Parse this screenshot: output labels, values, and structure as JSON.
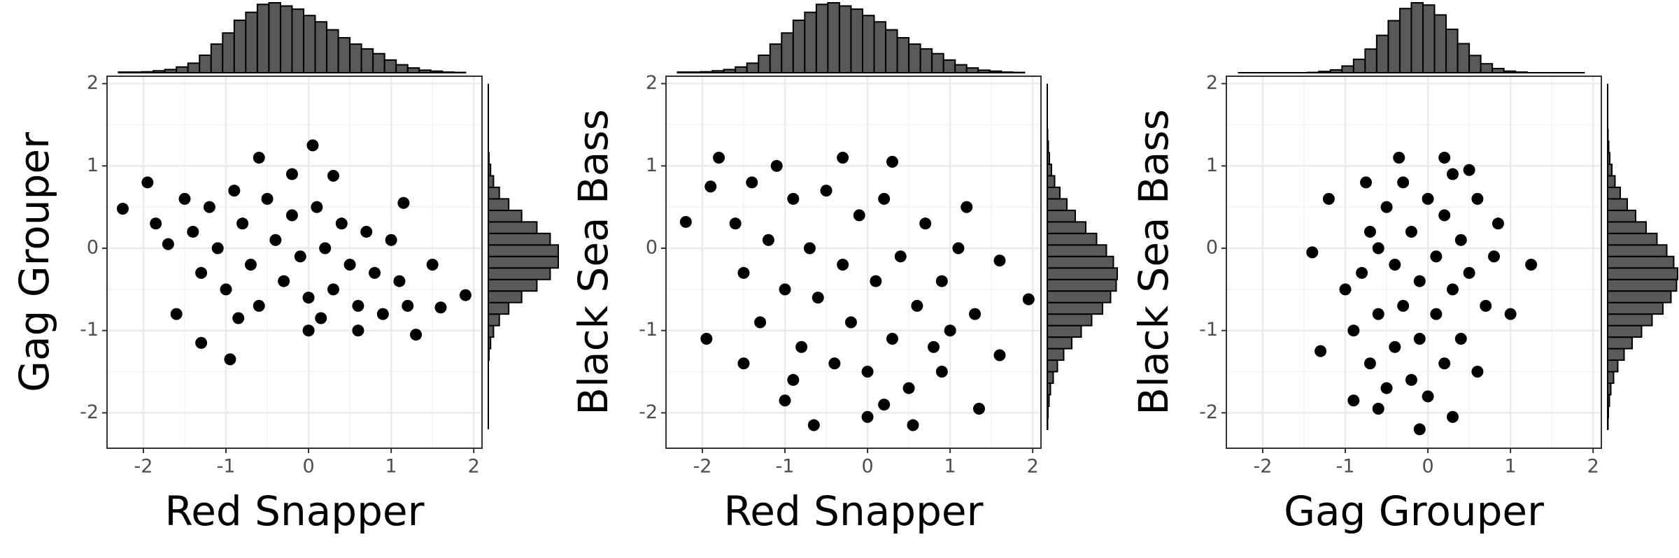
{
  "chart_data": [
    {
      "type": "scatter",
      "x_label": "Red Snapper",
      "y_label": "Gag Grouper",
      "color": "#000000",
      "grid": true,
      "xlim": [
        -2.44,
        2.1
      ],
      "ylim": [
        -2.43,
        2.09
      ],
      "xticks": [
        -2,
        -1,
        0,
        1,
        2
      ],
      "yticks": [
        -2,
        -1,
        0,
        1,
        2
      ],
      "x": [
        -2.25,
        -1.95,
        -1.85,
        0.05,
        -0.6,
        1.9,
        1.6,
        1.5,
        -0.95,
        0.0,
        0.6,
        1.15,
        -1.6,
        -1.3,
        0.3,
        -0.2,
        1.3,
        -1.7,
        -1.5,
        -1.4,
        -1.3,
        -1.2,
        -1.1,
        -1.0,
        -0.9,
        -0.8,
        -0.7,
        -0.6,
        -0.5,
        -0.4,
        -0.3,
        -0.2,
        -0.1,
        0.0,
        0.1,
        0.2,
        0.3,
        0.4,
        0.5,
        0.6,
        0.7,
        0.8,
        0.9,
        1.0,
        1.1,
        1.2,
        -0.85,
        0.15
      ],
      "y": [
        0.48,
        0.8,
        0.3,
        1.25,
        1.1,
        -0.57,
        -0.72,
        -0.2,
        -1.35,
        -1.0,
        -1.0,
        0.55,
        -0.8,
        -1.15,
        0.88,
        0.9,
        -1.05,
        0.05,
        0.6,
        0.2,
        -0.3,
        0.5,
        0.0,
        -0.5,
        0.7,
        0.3,
        -0.2,
        -0.7,
        0.6,
        0.1,
        -0.4,
        0.4,
        -0.1,
        -0.6,
        0.5,
        0.0,
        -0.5,
        0.3,
        -0.2,
        -0.7,
        0.2,
        -0.3,
        -0.8,
        0.1,
        -0.4,
        -0.7,
        -0.85,
        -0.85
      ],
      "x_hist": {
        "color": "#595959",
        "bins": [
          -2.3,
          -2.16,
          -2.02,
          -1.88,
          -1.74,
          -1.6,
          -1.46,
          -1.32,
          -1.18,
          -1.04,
          -0.9,
          -0.76,
          -0.62,
          -0.48,
          -0.34,
          -0.2,
          -0.06,
          0.08,
          0.22,
          0.36,
          0.5,
          0.64,
          0.78,
          0.92,
          1.06,
          1.2,
          1.34,
          1.48,
          1.62,
          1.76,
          1.9
        ],
        "counts": [
          2,
          2,
          3,
          6,
          10,
          18,
          30,
          55,
          90,
          125,
          165,
          190,
          215,
          220,
          210,
          200,
          180,
          160,
          135,
          110,
          90,
          75,
          60,
          40,
          25,
          15,
          8,
          5,
          2,
          1
        ]
      },
      "y_hist": {
        "color": "#595959",
        "bins": [
          -2.2,
          -2.06,
          -1.92,
          -1.78,
          -1.64,
          -1.5,
          -1.36,
          -1.22,
          -1.08,
          -0.94,
          -0.8,
          -0.66,
          -0.52,
          -0.38,
          -0.24,
          -0.1,
          0.04,
          0.18,
          0.32,
          0.46,
          0.6,
          0.74,
          0.88,
          1.02,
          1.16,
          1.3,
          1.44,
          1.58,
          1.72,
          1.86,
          2.0
        ],
        "counts": [
          0,
          0,
          0,
          0,
          0,
          0,
          2,
          7,
          16,
          34,
          63,
          103,
          150,
          191,
          216,
          216,
          191,
          150,
          103,
          63,
          34,
          16,
          7,
          2,
          0,
          0,
          0,
          0,
          0,
          0
        ]
      }
    },
    {
      "type": "scatter",
      "x_label": "Red Snapper",
      "y_label": "Black Sea Bass",
      "color": "#000000",
      "grid": true,
      "xlim": [
        -2.44,
        2.1
      ],
      "ylim": [
        -2.43,
        2.09
      ],
      "xticks": [
        -2,
        -1,
        0,
        1,
        2
      ],
      "yticks": [
        -2,
        -1,
        0,
        1,
        2
      ],
      "x": [
        -2.2,
        -1.95,
        -1.9,
        -1.8,
        1.95,
        1.6,
        1.35,
        -0.65,
        0.55,
        -1.0,
        0.0,
        1.6,
        -0.3,
        0.3,
        -1.1,
        0.9,
        -1.5,
        1.2,
        -1.6,
        -1.5,
        -1.4,
        -1.3,
        -1.2,
        -1.0,
        -0.9,
        -0.8,
        -0.7,
        -0.6,
        -0.5,
        -0.4,
        -0.3,
        -0.2,
        -0.1,
        0.0,
        0.1,
        0.2,
        0.3,
        0.4,
        0.5,
        0.6,
        0.7,
        0.8,
        0.9,
        1.0,
        1.1,
        1.3,
        -0.9,
        0.2
      ],
      "y": [
        0.32,
        -1.1,
        0.75,
        1.1,
        -0.62,
        -1.3,
        -1.95,
        -2.15,
        -2.15,
        -1.85,
        -2.05,
        -0.15,
        1.1,
        1.05,
        1.0,
        -1.5,
        -1.4,
        0.5,
        0.3,
        -0.3,
        0.8,
        -0.9,
        0.1,
        -0.5,
        0.6,
        -1.2,
        0.0,
        -0.6,
        0.7,
        -1.4,
        -0.2,
        -0.9,
        0.4,
        -1.5,
        -0.4,
        0.6,
        -1.1,
        -0.1,
        -1.7,
        -0.7,
        0.3,
        -1.2,
        -0.4,
        -1.0,
        0.0,
        -0.8,
        -1.6,
        -1.9
      ],
      "x_hist": {
        "color": "#595959",
        "bins": [
          -2.3,
          -2.16,
          -2.02,
          -1.88,
          -1.74,
          -1.6,
          -1.46,
          -1.32,
          -1.18,
          -1.04,
          -0.9,
          -0.76,
          -0.62,
          -0.48,
          -0.34,
          -0.2,
          -0.06,
          0.08,
          0.22,
          0.36,
          0.5,
          0.64,
          0.78,
          0.92,
          1.06,
          1.2,
          1.34,
          1.48,
          1.62,
          1.76,
          1.9
        ],
        "counts": [
          2,
          2,
          3,
          6,
          10,
          18,
          30,
          55,
          90,
          125,
          165,
          190,
          215,
          220,
          210,
          200,
          180,
          160,
          135,
          110,
          90,
          75,
          60,
          40,
          25,
          15,
          8,
          5,
          2,
          1
        ]
      },
      "y_hist": {
        "color": "#595959",
        "bins": [
          -2.2,
          -2.06,
          -1.92,
          -1.78,
          -1.64,
          -1.5,
          -1.36,
          -1.22,
          -1.08,
          -0.94,
          -0.8,
          -0.66,
          -0.52,
          -0.38,
          -0.24,
          -0.1,
          0.04,
          0.18,
          0.32,
          0.46,
          0.6,
          0.74,
          0.88,
          1.02,
          1.16,
          1.3,
          1.44,
          1.58,
          1.72,
          1.86,
          2.0
        ],
        "counts": [
          1,
          2,
          5,
          9,
          17,
          29,
          47,
          70,
          97,
          127,
          158,
          181,
          197,
          200,
          189,
          169,
          141,
          110,
          80,
          56,
          36,
          21,
          12,
          6,
          3,
          1,
          0,
          0,
          0,
          0
        ]
      }
    },
    {
      "type": "scatter",
      "x_label": "Gag Grouper",
      "y_label": "Black Sea Bass",
      "color": "#000000",
      "grid": true,
      "xlim": [
        -2.44,
        2.1
      ],
      "ylim": [
        -2.43,
        2.09
      ],
      "xticks": [
        -2,
        -1,
        0,
        1,
        2
      ],
      "yticks": [
        -2,
        -1,
        0,
        1,
        2
      ],
      "x": [
        -1.4,
        -1.2,
        -1.3,
        1.25,
        -0.35,
        0.2,
        0.5,
        -0.9,
        -0.1,
        0.3,
        -0.6,
        1.0,
        0.85,
        -1.0,
        0.6,
        -0.75,
        -0.9,
        -0.8,
        -0.7,
        -0.7,
        -0.6,
        -0.5,
        -0.5,
        -0.4,
        -0.4,
        -0.3,
        -0.3,
        -0.2,
        -0.2,
        -0.1,
        -0.1,
        0.0,
        0.0,
        0.1,
        0.1,
        0.2,
        0.2,
        0.3,
        0.3,
        0.4,
        0.4,
        0.5,
        0.6,
        0.7,
        0.8,
        -0.6
      ],
      "y": [
        -0.05,
        0.6,
        -1.25,
        -0.2,
        1.1,
        1.1,
        0.95,
        -1.85,
        -2.2,
        -2.05,
        -1.95,
        -0.8,
        0.3,
        -0.5,
        -1.5,
        0.8,
        -1.0,
        -0.3,
        -1.4,
        0.2,
        -0.8,
        -1.7,
        0.5,
        -0.2,
        -1.2,
        0.8,
        -0.7,
        -1.6,
        0.2,
        -0.4,
        -1.1,
        0.6,
        -1.8,
        -0.1,
        -0.8,
        -1.4,
        0.4,
        -0.5,
        0.9,
        -1.1,
        0.1,
        -0.3,
        0.6,
        -0.7,
        -0.1,
        0.0
      ],
      "x_hist": {
        "color": "#595959",
        "bins": [
          -2.3,
          -2.16,
          -2.02,
          -1.88,
          -1.74,
          -1.6,
          -1.46,
          -1.32,
          -1.18,
          -1.04,
          -0.9,
          -0.76,
          -0.62,
          -0.48,
          -0.34,
          -0.2,
          -0.06,
          0.08,
          0.22,
          0.36,
          0.5,
          0.64,
          0.78,
          0.92,
          1.06,
          1.2,
          1.34,
          1.48,
          1.62,
          1.76,
          1.9
        ],
        "counts": [
          0,
          0,
          0,
          0,
          0,
          0,
          1,
          4,
          9,
          21,
          42,
          74,
          117,
          163,
          201,
          219,
          212,
          181,
          136,
          91,
          54,
          28,
          13,
          5,
          2,
          0,
          0,
          0,
          0,
          0
        ]
      },
      "y_hist": {
        "color": "#595959",
        "bins": [
          -2.2,
          -2.06,
          -1.92,
          -1.78,
          -1.64,
          -1.5,
          -1.36,
          -1.22,
          -1.08,
          -0.94,
          -0.8,
          -0.66,
          -0.52,
          -0.38,
          -0.24,
          -0.1,
          0.04,
          0.18,
          0.32,
          0.46,
          0.6,
          0.74,
          0.88,
          1.02,
          1.16,
          1.3,
          1.44,
          1.58,
          1.72,
          1.86,
          2.0
        ],
        "counts": [
          1,
          2,
          5,
          9,
          17,
          29,
          47,
          70,
          97,
          127,
          158,
          181,
          197,
          200,
          189,
          169,
          141,
          110,
          80,
          56,
          36,
          21,
          12,
          6,
          3,
          1,
          0,
          0,
          0,
          0
        ]
      }
    }
  ]
}
